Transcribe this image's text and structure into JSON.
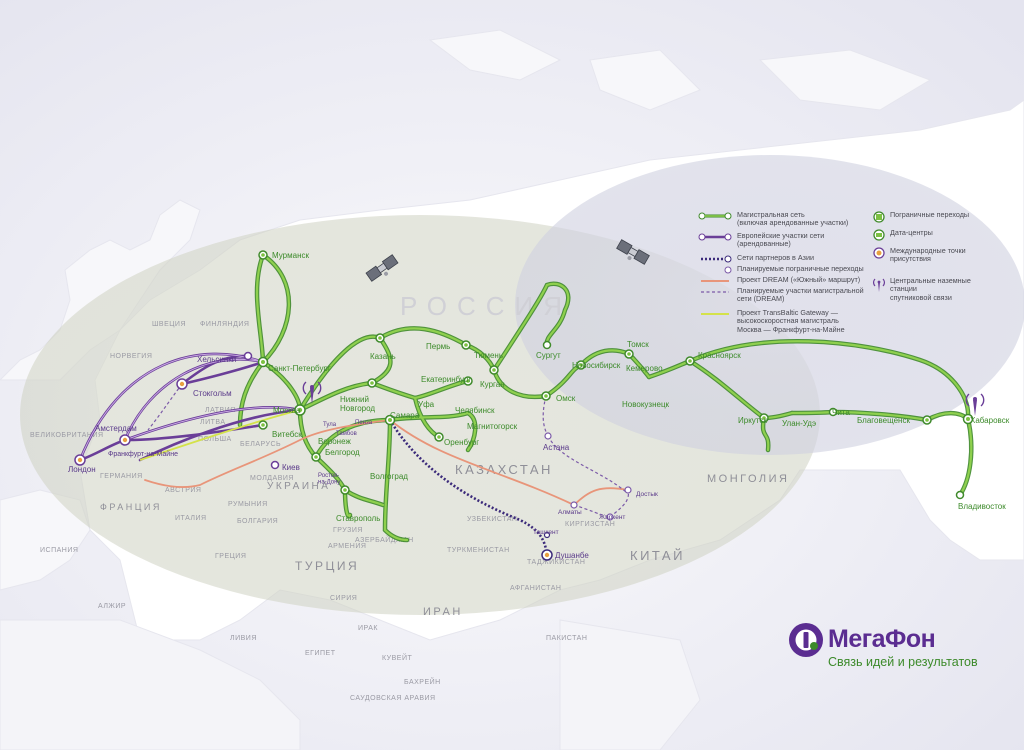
{
  "map_title": "",
  "region_labels": {
    "russia": "РОССИЯ",
    "kazakhstan": "КАЗАХСТАН",
    "mongolia": "МОНГОЛИЯ",
    "china": "КИТАЙ",
    "turkey": "ТУРЦИЯ",
    "iran": "ИРАН",
    "ukraine": "УКРАИНА",
    "belarus": "БЕЛАРУСЬ",
    "france": "ФРАНЦИЯ",
    "germany": "ГЕРМАНИЯ",
    "sweden": "ШВЕЦИЯ",
    "finland": "ФИНЛЯНДИЯ",
    "norway": "НОРВЕГИЯ",
    "great_britain": "ВЕЛИКОБРИТАНИЯ",
    "spain": "ИСПАНИЯ",
    "italy": "ИТАЛИЯ",
    "poland": "ПОЛЬША",
    "austria": "АВСТРИЯ",
    "romania": "РУМЫНИЯ",
    "bulgaria": "БОЛГАРИЯ",
    "greece": "ГРЕЦИЯ",
    "algeria": "АЛЖИР",
    "libya": "ЛИВИЯ",
    "egypt": "ЕГИПЕТ",
    "syria": "СИРИЯ",
    "iraq": "ИРАК",
    "uzbekistan": "УЗБЕКИСТАН",
    "turkmenistan": "ТУРКМЕНИСТАН",
    "kyrgyzstan": "КИРГИЗСТАН",
    "tajikistan": "ТАДЖИКИСТАН",
    "afghanistan": "АФГАНИСТАН",
    "pakistan": "ПАКИСТАН",
    "kuwait": "КУВЕЙТ",
    "saudi": "САУДОВСКАЯ АРАВИЯ",
    "bahrain": "БАХРЕЙН",
    "georgia": "ГРУЗИЯ",
    "azerbaijan": "АЗЕРБАЙДЖАН",
    "armenia": "АРМЕНИЯ",
    "moldova": "МОЛДАВИЯ",
    "latvia": "ЛАТВИЯ",
    "lithuania": "ЛИТВА"
  },
  "cities": {
    "murmansk": "Мурманск",
    "stpetersburg": "Санкт-Петербург",
    "helsinki": "Хельсинки",
    "stockholm": "Стокгольм",
    "amsterdam": "Амстердам",
    "frankfurt": "Франкфурт-на-Майне",
    "london": "Лондон",
    "moscow": "Москва",
    "vitebsk": "Витебск",
    "tula": "Тула",
    "nizhny": "Нижний\nНовгород",
    "kazan": "Казань",
    "perm": "Пермь",
    "ekaterinburg": "Екатеринбург",
    "tyumen": "Тюмень",
    "kurgan": "Курган",
    "chelyabinsk": "Челябинск",
    "magnitogorsk": "Магнитогорск",
    "ufa": "Уфа",
    "samara": "Самара",
    "orenburg": "Оренбург",
    "voronezh": "Воронеж",
    "belgorod": "Белгород",
    "tambov": "Тамбов",
    "penza": "Пенза",
    "volgograd": "Волгоград",
    "rostov": "Ростов-\nна-Дону",
    "stavropol": "Ставрополь",
    "kiev": "Киев",
    "surgut": "Сургут",
    "omsk": "Омск",
    "novosibirsk": "Новосибирск",
    "tomsk": "Томск",
    "kemerovo": "Кемерово",
    "novokuznetsk": "Новокузнецк",
    "krasnoyarsk": "Красноярск",
    "irkutsk": "Иркутск",
    "ulanude": "Улан-Удэ",
    "chita": "Чита",
    "blagoveshchensk": "Благовещенск",
    "khabarovsk": "Хабаровск",
    "vladivostok": "Владивосток",
    "astana": "Астана",
    "almaty": "Алматы",
    "zharkent": "Жаркент",
    "dostyk": "Достык",
    "tashkent": "Ташкент",
    "dushanbe": "Душанбе"
  },
  "legend": {
    "backbone": "Магистральная сеть\n(включая арендованные участки)",
    "european": "Европейские участки сети\n(арендованные)",
    "asia_partners": "Сети партнеров в Азии",
    "planned_crossings": "Планируемые пограничные переходы",
    "dream_south": "Проект DREAM («Южный» маршрут)",
    "planned_dream": "Планируемые участки магистральной\nсети (DREAM)",
    "transbaltic": "Проект TransBaltic Gateway —\nвысокоскоростная магистраль\nМосква — Франкфурт-на-Майне",
    "border_crossings": "Пограничные переходы",
    "data_centers": "Дата-центры",
    "intl_points": "Международные точки\nприсутствия",
    "satellite_stations": "Центральные наземные станции\nспутниковой связи"
  },
  "colors": {
    "backbone": "#7cc142",
    "backbone_stroke": "#3f8a2b",
    "european": "#6a3e98",
    "asia_partners": "#3b2a7a",
    "dream": "#e8957a",
    "transbaltic": "#d4e24a",
    "brand_purple": "#5b2d91",
    "brand_green": "#3c8a2a"
  },
  "brand": {
    "name": "МегаФон",
    "slogan": "Связь идей и результатов"
  }
}
